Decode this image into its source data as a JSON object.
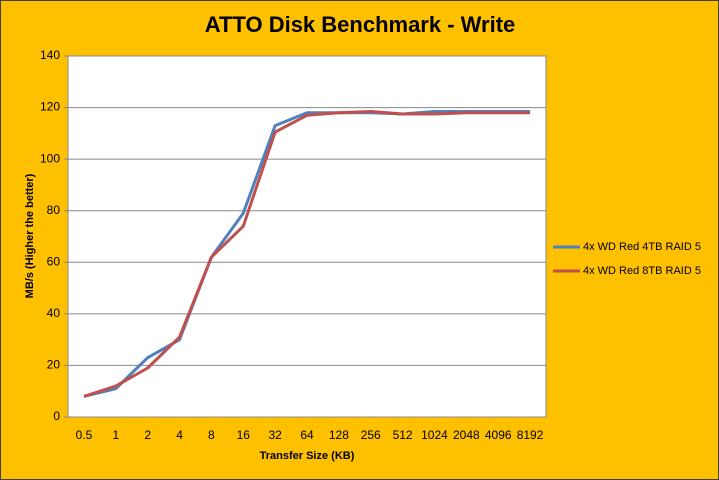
{
  "chart_data": {
    "type": "line",
    "title": "ATTO Disk Benchmark - Write",
    "x_label": "Transfer Size (KB)",
    "y_label": "MB/s (Higher the better)",
    "categories": [
      "0.5",
      "1",
      "2",
      "4",
      "8",
      "16",
      "32",
      "64",
      "128",
      "256",
      "512",
      "1024",
      "2048",
      "4096",
      "8192"
    ],
    "series": [
      {
        "name": "4x WD Red 4TB RAID 5",
        "color": "#4f81bd",
        "values": [
          8,
          11,
          23,
          30,
          62,
          79,
          113,
          118,
          118,
          118,
          117.5,
          118.5,
          118.5,
          118.5,
          118.5
        ]
      },
      {
        "name": "4x WD Red 8TB RAID 5",
        "color": "#c0504d",
        "values": [
          8,
          12,
          19,
          31,
          62,
          74,
          110.5,
          117,
          118,
          118.5,
          117.5,
          117.5,
          118,
          118,
          118
        ]
      }
    ],
    "ylim": [
      0,
      140
    ],
    "yticks": [
      0,
      20,
      40,
      60,
      80,
      100,
      120,
      140
    ],
    "grid": true,
    "legend": "right"
  }
}
